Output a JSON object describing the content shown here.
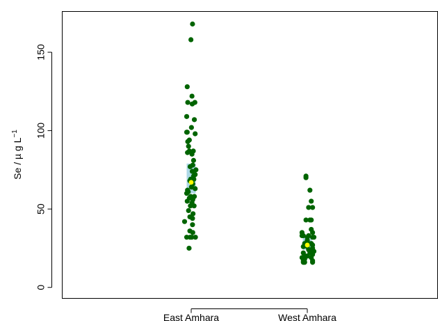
{
  "chart_data": {
    "type": "scatter",
    "title": "",
    "xlabel": "",
    "ylabel": "Se / µ g L",
    "ylabel_superscript": "−1",
    "categories": [
      "East Amhara",
      "West Amhara"
    ],
    "ylim": [
      -7,
      176
    ],
    "yticks": [
      0,
      50,
      100,
      150
    ],
    "grid": false,
    "colors": {
      "points": "#006400",
      "box": "#add8e6",
      "median": "#ffff00",
      "axis": "#000000"
    },
    "boxes": [
      {
        "category": "East Amhara",
        "q1": 60,
        "q3": 79,
        "median": 67
      },
      {
        "category": "West Amhara",
        "q1": 24,
        "q3": 32,
        "median": 27
      }
    ],
    "series": [
      {
        "category": "East Amhara",
        "points": [
          [
            0.05,
            168
          ],
          [
            -0.01,
            158
          ],
          [
            -0.15,
            128
          ],
          [
            0.03,
            122
          ],
          [
            -0.13,
            118
          ],
          [
            0.14,
            118
          ],
          [
            0.04,
            117
          ],
          [
            0.12,
            107
          ],
          [
            -0.17,
            109
          ],
          [
            0.01,
            102
          ],
          [
            -0.17,
            99
          ],
          [
            -0.15,
            99
          ],
          [
            0.15,
            98
          ],
          [
            -0.07,
            94
          ],
          [
            -0.13,
            93
          ],
          [
            -0.1,
            90
          ],
          [
            -0.07,
            87
          ],
          [
            0.08,
            87
          ],
          [
            -0.14,
            86
          ],
          [
            0.03,
            85
          ],
          [
            0.09,
            81
          ],
          [
            -0.04,
            77
          ],
          [
            0.06,
            78
          ],
          [
            0.18,
            75
          ],
          [
            0.15,
            72
          ],
          [
            0.04,
            74
          ],
          [
            0.09,
            71
          ],
          [
            -0.02,
            69
          ],
          [
            0.1,
            69
          ],
          [
            -0.05,
            68
          ],
          [
            0.03,
            67
          ],
          [
            0.06,
            66
          ],
          [
            0.01,
            64
          ],
          [
            0.15,
            63
          ],
          [
            -0.14,
            62
          ],
          [
            -0.11,
            61
          ],
          [
            -0.17,
            60
          ],
          [
            -0.02,
            58
          ],
          [
            0.12,
            58
          ],
          [
            -0.07,
            57
          ],
          [
            0.06,
            56
          ],
          [
            -0.15,
            55
          ],
          [
            0.03,
            54
          ],
          [
            0.11,
            52
          ],
          [
            -0.03,
            52
          ],
          [
            -0.1,
            49
          ],
          [
            0.07,
            47
          ],
          [
            -0.05,
            45
          ],
          [
            0.05,
            44
          ],
          [
            -0.25,
            42
          ],
          [
            0.05,
            40
          ],
          [
            -0.05,
            36
          ],
          [
            0.06,
            35
          ],
          [
            -0.17,
            32
          ],
          [
            -0.04,
            32
          ],
          [
            0.02,
            32
          ],
          [
            0.16,
            32
          ],
          [
            -0.08,
            25
          ]
        ]
      },
      {
        "category": "West Amhara",
        "points": [
          [
            -0.05,
            71
          ],
          [
            -0.05,
            70
          ],
          [
            0.1,
            62
          ],
          [
            0.15,
            55
          ],
          [
            0.2,
            51
          ],
          [
            0.05,
            51
          ],
          [
            -0.05,
            43
          ],
          [
            0.1,
            43
          ],
          [
            0.15,
            43
          ],
          [
            0.15,
            37
          ],
          [
            -0.2,
            35
          ],
          [
            0.2,
            35
          ],
          [
            -0.15,
            33
          ],
          [
            -0.2,
            33
          ],
          [
            0.05,
            33
          ],
          [
            0.0,
            32
          ],
          [
            0.2,
            32
          ],
          [
            0.25,
            32
          ],
          [
            0.0,
            30
          ],
          [
            -0.1,
            28
          ],
          [
            0.05,
            28
          ],
          [
            0.15,
            28
          ],
          [
            0.2,
            27
          ],
          [
            -0.15,
            26
          ],
          [
            0.0,
            26
          ],
          [
            0.2,
            25
          ],
          [
            0.05,
            24
          ],
          [
            0.15,
            24
          ],
          [
            0.25,
            23
          ],
          [
            -0.15,
            22
          ],
          [
            0.1,
            22
          ],
          [
            0.2,
            21
          ],
          [
            -0.1,
            20
          ],
          [
            -0.05,
            20
          ],
          [
            0.0,
            20
          ],
          [
            -0.2,
            19
          ],
          [
            0.15,
            19
          ],
          [
            -0.15,
            18
          ],
          [
            -0.1,
            18
          ],
          [
            -0.15,
            17
          ],
          [
            0.2,
            17
          ],
          [
            -0.1,
            16
          ],
          [
            0.2,
            16
          ],
          [
            -0.15,
            16
          ]
        ]
      }
    ]
  }
}
